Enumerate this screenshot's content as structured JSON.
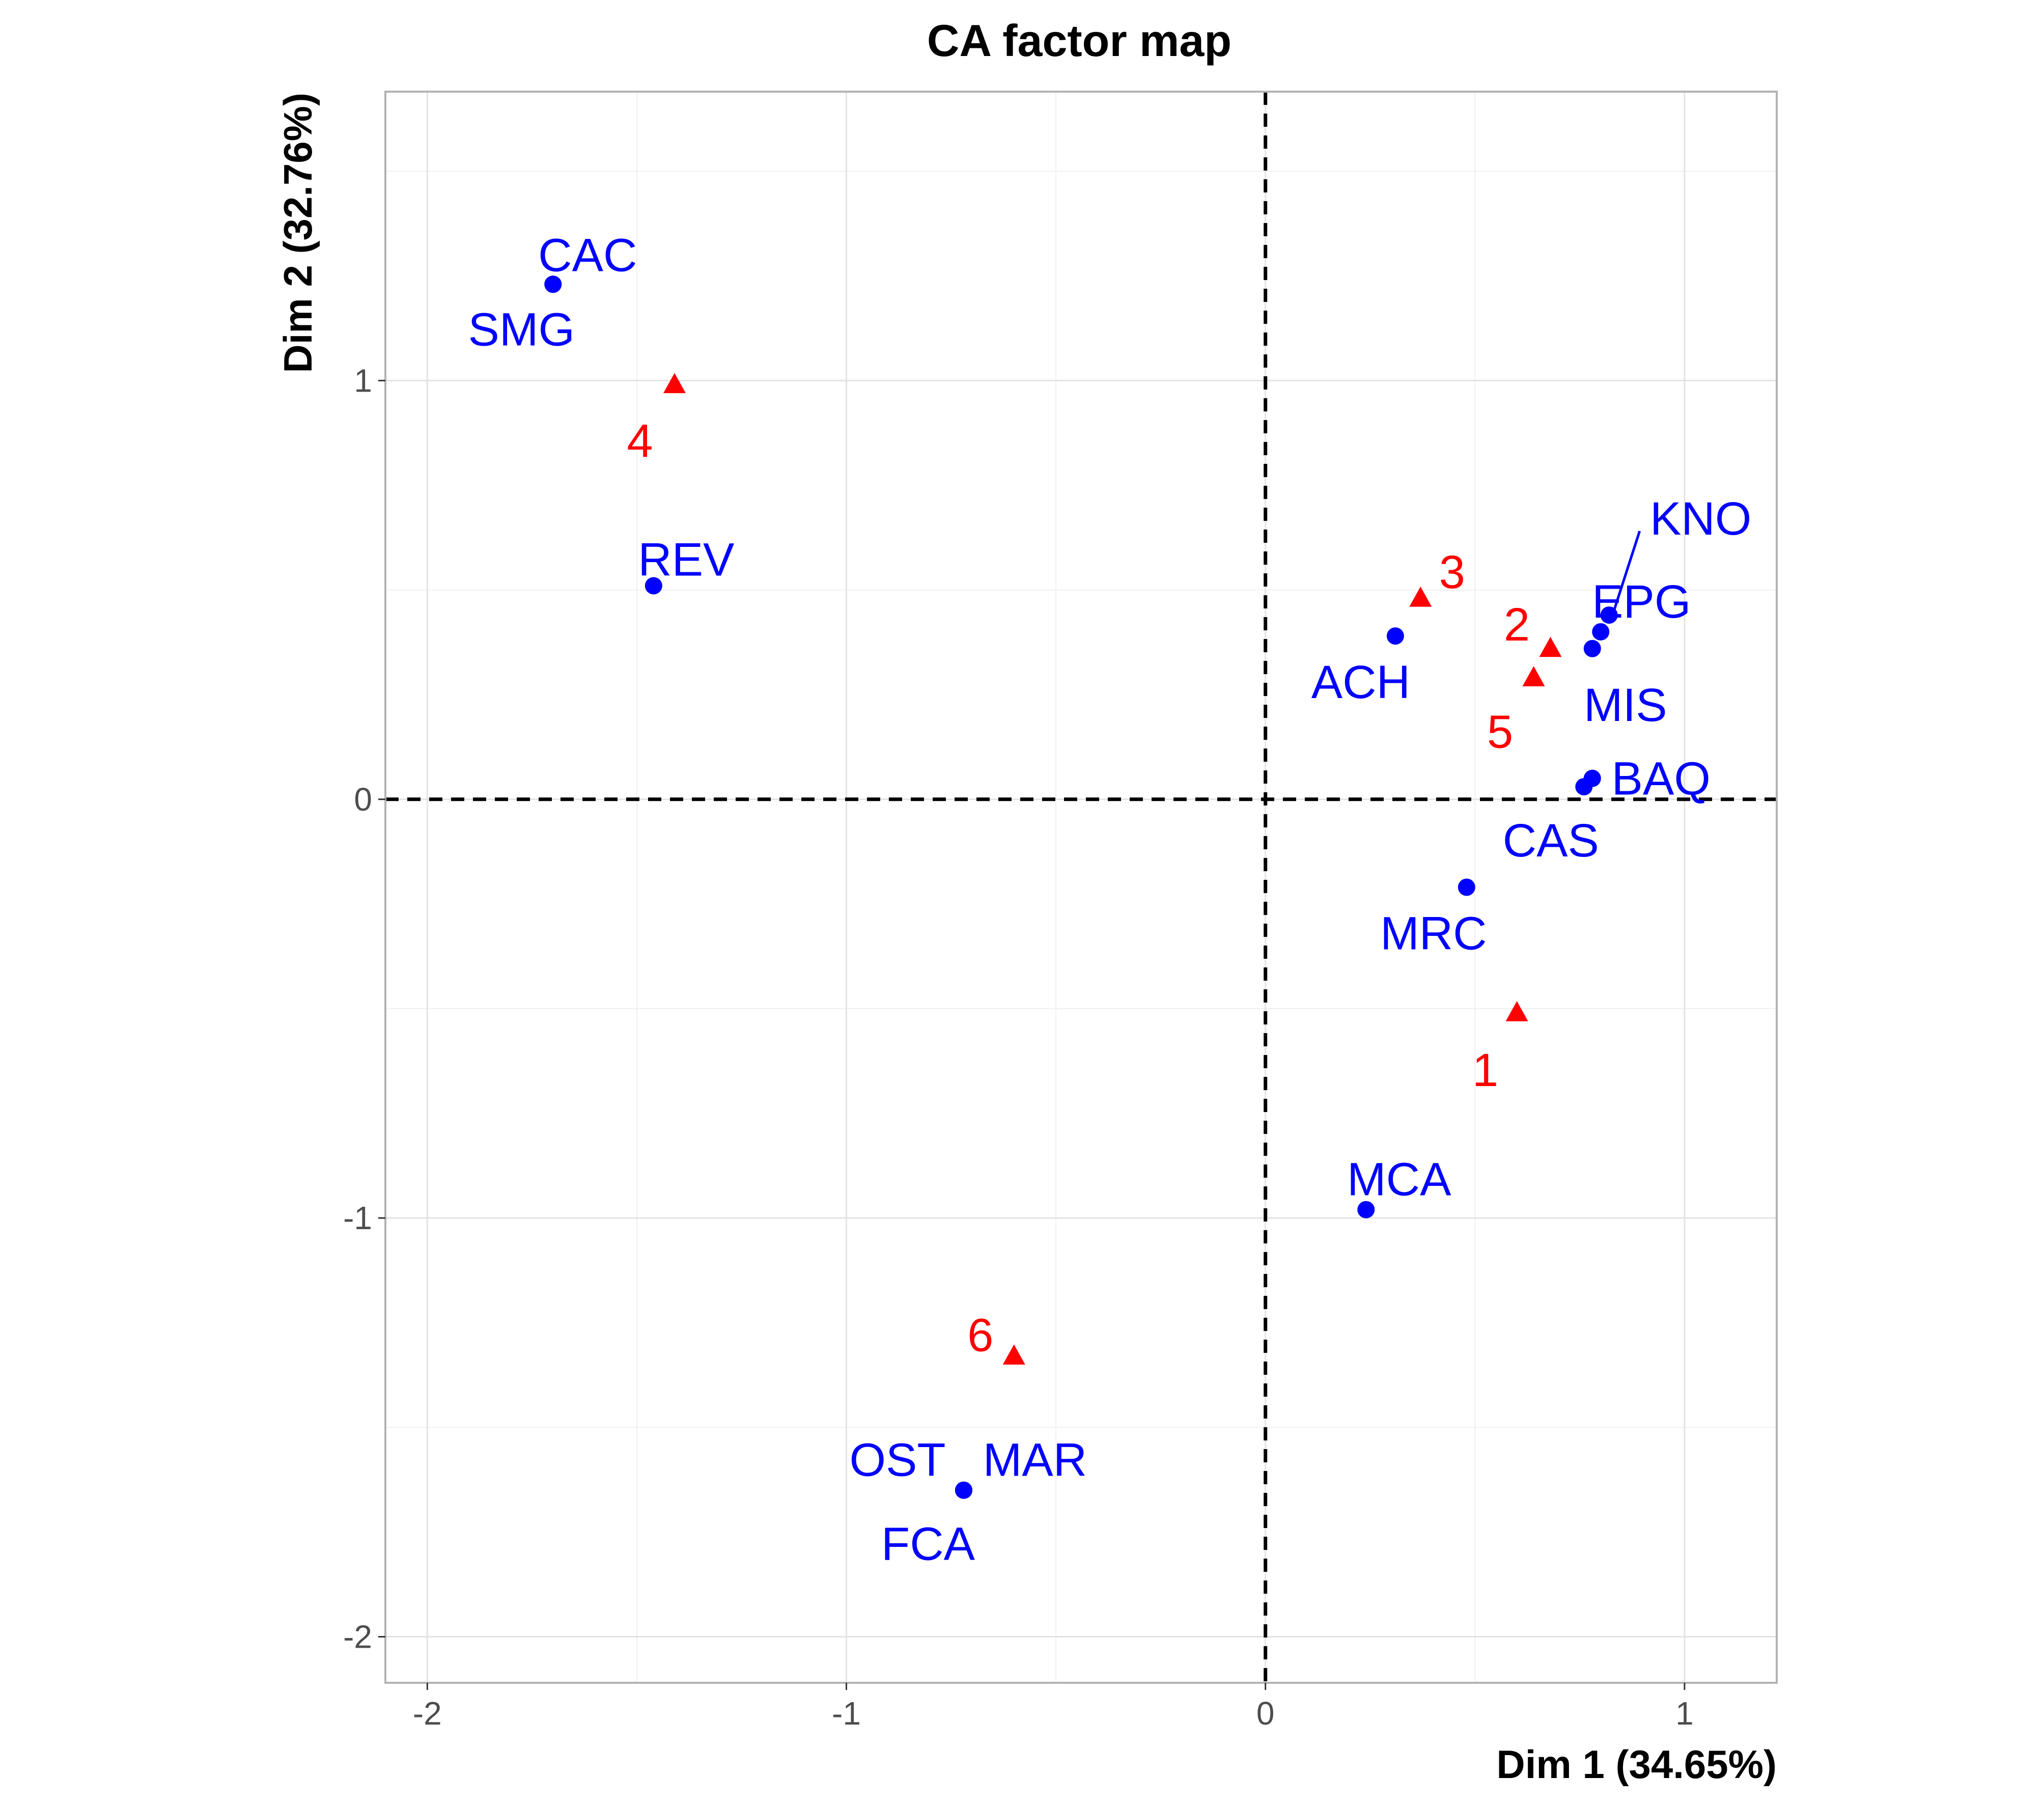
{
  "chart_data": {
    "type": "scatter",
    "title": "CA factor map",
    "xlabel": "Dim 1 (34.65%)",
    "ylabel": "Dim 2 (32.76%)",
    "xlim": [
      -2.1,
      1.22
    ],
    "ylim": [
      -2.11,
      1.69
    ],
    "xticks": [
      -2,
      -1,
      0,
      1
    ],
    "yticks": [
      -2,
      -1,
      0,
      1
    ],
    "xtick_labels": [
      "-2",
      "-1",
      "0",
      "1"
    ],
    "ytick_labels": [
      "-2",
      "-1",
      "0",
      "1"
    ],
    "grid": true,
    "reference_lines": {
      "x": 0,
      "y": 0,
      "style": "dashed"
    },
    "series": [
      {
        "marker": "circle",
        "color": "#0000FF",
        "points": [
          {
            "label": "CAC",
            "x": -1.7,
            "y": 1.23
          },
          {
            "label": "SMG",
            "x": -1.7,
            "y": 1.23
          },
          {
            "label": "REV",
            "x": -1.46,
            "y": 0.51
          },
          {
            "label": "ACH",
            "x": 0.31,
            "y": 0.39
          },
          {
            "label": "KNO",
            "x": 0.82,
            "y": 0.44
          },
          {
            "label": "EPG",
            "x": 0.8,
            "y": 0.4
          },
          {
            "label": "MIS",
            "x": 0.78,
            "y": 0.36
          },
          {
            "label": "BAQ",
            "x": 0.78,
            "y": 0.05
          },
          {
            "label": "CAS",
            "x": 0.76,
            "y": 0.03
          },
          {
            "label": "MRC",
            "x": 0.48,
            "y": -0.21
          },
          {
            "label": "MCA",
            "x": 0.24,
            "y": -0.98
          },
          {
            "label": "OST",
            "x": -0.72,
            "y": -1.65
          },
          {
            "label": "MAR",
            "x": -0.72,
            "y": -1.65
          },
          {
            "label": "FCA",
            "x": -0.72,
            "y": -1.65
          }
        ]
      },
      {
        "marker": "triangle",
        "color": "#FF0000",
        "points": [
          {
            "label": "4",
            "x": -1.41,
            "y": 0.99
          },
          {
            "label": "3",
            "x": 0.37,
            "y": 0.48
          },
          {
            "label": "2",
            "x": 0.68,
            "y": 0.36
          },
          {
            "label": "5",
            "x": 0.64,
            "y": 0.29
          },
          {
            "label": "1",
            "x": 0.6,
            "y": -0.51
          },
          {
            "label": "6",
            "x": -0.6,
            "y": -1.33
          }
        ]
      }
    ]
  }
}
